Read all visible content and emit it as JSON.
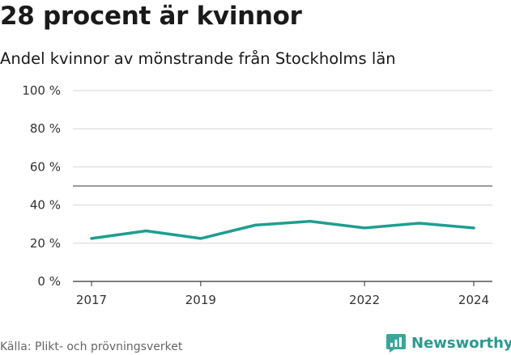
{
  "title": "28 procent är kvinnor",
  "subtitle": "Andel kvinnor av mönstrande från Stockholms län",
  "source": "Källa: Plikt- och prövningsverket",
  "brand": {
    "name": "Newsworthy",
    "icon": "newsworthy-logo-icon"
  },
  "colors": {
    "series": "#1f9e8f",
    "grid": "#d6d6d6",
    "reference": "#7a7a7a",
    "brand": "#2a9a8f"
  },
  "chart_data": {
    "type": "line",
    "title": "28 procent är kvinnor",
    "subtitle": "Andel kvinnor av mönstrande från Stockholms län",
    "x": [
      2017,
      2018,
      2019,
      2020,
      2021,
      2022,
      2023,
      2024
    ],
    "series": [
      {
        "name": "Andel kvinnor",
        "values": [
          22.5,
          26.5,
          22.5,
          29.5,
          31.5,
          28.0,
          30.5,
          28.0
        ]
      }
    ],
    "ylim": [
      0,
      100
    ],
    "yticks": [
      0,
      20,
      40,
      60,
      80,
      100
    ],
    "ytick_labels": [
      "0 %",
      "20 %",
      "40 %",
      "60 %",
      "80 %",
      "100 %"
    ],
    "xticks": [
      2017,
      2019,
      2022,
      2024
    ],
    "xtick_labels": [
      "2017",
      "2019",
      "2022",
      "2024"
    ],
    "reference_line": 50,
    "xlabel": "",
    "ylabel": "",
    "grid": true,
    "legend": "none"
  }
}
